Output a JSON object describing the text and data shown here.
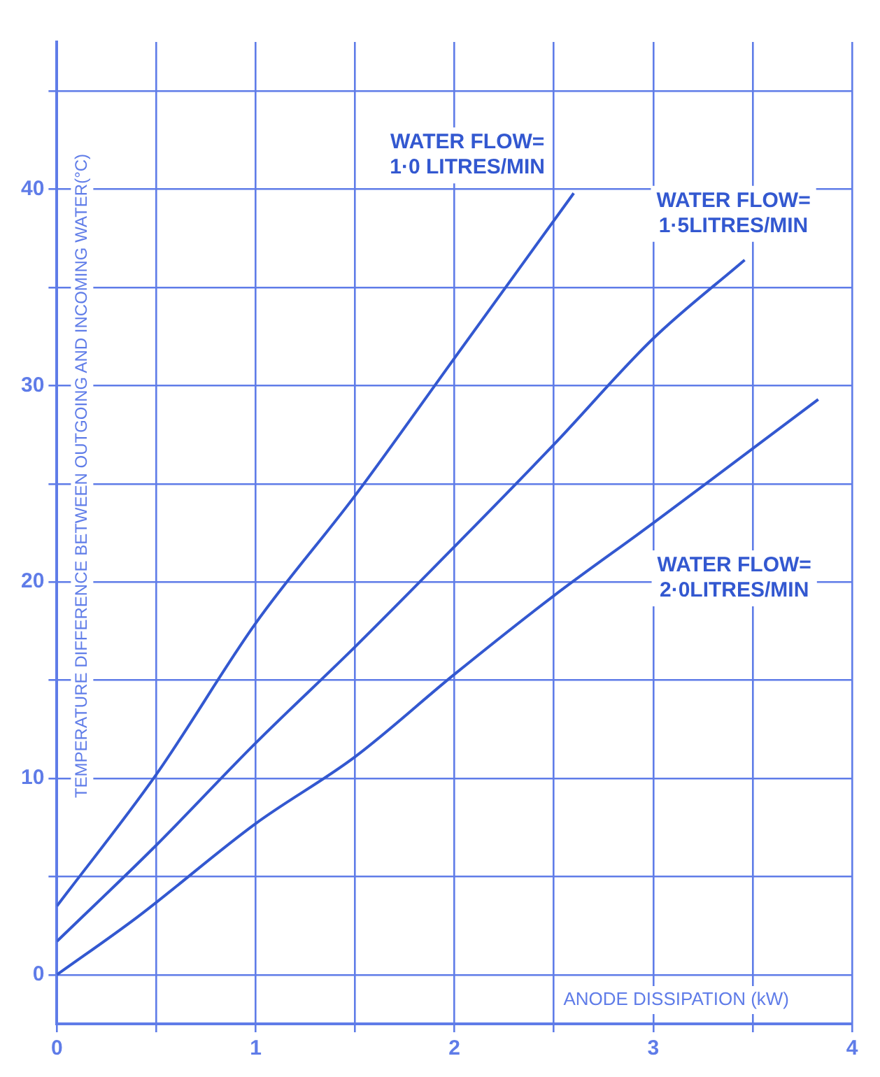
{
  "chart_data": {
    "type": "line",
    "xlabel": "ANODE DISSIPATION (kW)",
    "ylabel": "TEMPERATURE DIFFERENCE BETWEEN OUTGOING AND INCOMING WATER(°C)",
    "series": [
      {
        "name": "WATER FLOW=\n1·0 LITRES/MIN",
        "color": "#3358d0",
        "x": [
          0,
          0.5,
          1,
          1.5,
          2,
          2.6
        ],
        "values": [
          3.5,
          10.2,
          17.9,
          24.4,
          31.4,
          39.8
        ]
      },
      {
        "name": "WATER FLOW=\n1·5LITRES/MIN",
        "color": "#3358d0",
        "x": [
          0,
          0.5,
          1,
          1.5,
          2,
          2.5,
          3,
          3.46
        ],
        "values": [
          1.7,
          6.6,
          11.8,
          16.7,
          21.8,
          27,
          32.4,
          36.4
        ]
      },
      {
        "name": "WATER FLOW=\n2·0LITRES/MIN",
        "color": "#3358d0",
        "x": [
          0,
          0.4,
          1,
          1.5,
          2,
          2.5,
          3,
          3.83
        ],
        "values": [
          0,
          2.9,
          7.7,
          11.1,
          15.3,
          19.3,
          23,
          29.3
        ]
      }
    ],
    "xlim": [
      0,
      4
    ],
    "ylim": [
      -2.5,
      47.5
    ],
    "xticks": [
      0,
      {
        "value": 0.5,
        "label": null
      },
      1,
      {
        "value": 1.5,
        "label": null
      },
      2,
      {
        "value": 2.5,
        "label": null
      },
      3,
      {
        "value": 3.5,
        "label": null
      },
      4
    ],
    "yticks": [
      0,
      {
        "value": 5,
        "label": null
      },
      10,
      {
        "value": 15,
        "label": null
      },
      20,
      {
        "value": 25,
        "label": null
      },
      30,
      {
        "value": 35,
        "label": null
      },
      40,
      {
        "value": 45,
        "label": null
      }
    ],
    "grid": true,
    "legend": false,
    "marker": "none",
    "line_style": "solid"
  }
}
